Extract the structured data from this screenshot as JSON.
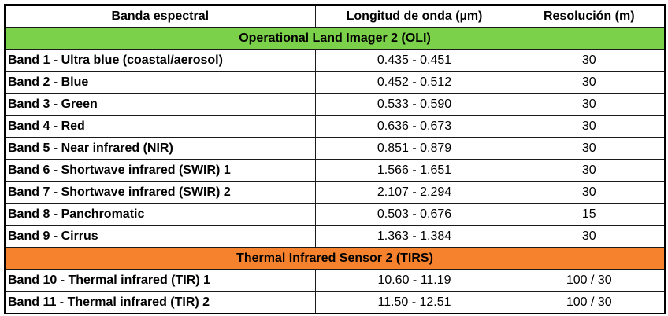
{
  "headers": {
    "band": "Banda espectral",
    "wavelength": "Longitud de onda (µm)",
    "resolution": "Resolución (m)"
  },
  "sections": [
    {
      "title": "Operational Land Imager 2 (OLI)",
      "color": "#7cd14a",
      "rows": [
        {
          "band": "Band 1 - Ultra blue (coastal/aerosol)",
          "wavelength": "0.435 - 0.451",
          "resolution": "30"
        },
        {
          "band": "Band 2 - Blue",
          "wavelength": "0.452 - 0.512",
          "resolution": "30"
        },
        {
          "band": "Band 3 - Green",
          "wavelength": "0.533 - 0.590",
          "resolution": "30"
        },
        {
          "band": "Band 4 - Red",
          "wavelength": "0.636 - 0.673",
          "resolution": "30"
        },
        {
          "band": "Band 5 - Near infrared (NIR)",
          "wavelength": "0.851 - 0.879",
          "resolution": "30"
        },
        {
          "band": "Band 6 - Shortwave infrared (SWIR) 1",
          "wavelength": "1.566 - 1.651",
          "resolution": "30"
        },
        {
          "band": "Band 7 - Shortwave infrared (SWIR) 2",
          "wavelength": "2.107 - 2.294",
          "resolution": "30"
        },
        {
          "band": "Band 8 - Panchromatic",
          "wavelength": "0.503 - 0.676",
          "resolution": "15"
        },
        {
          "band": "Band 9 - Cirrus",
          "wavelength": "1.363 - 1.384",
          "resolution": "30"
        }
      ]
    },
    {
      "title": "Thermal Infrared Sensor 2 (TIRS)",
      "color": "#f6822d",
      "rows": [
        {
          "band": "Band 10 - Thermal infrared (TIR) 1",
          "wavelength": "10.60 - 11.19",
          "resolution": "100 / 30"
        },
        {
          "band": "Band 11 - Thermal infrared (TIR) 2",
          "wavelength": "11.50 - 12.51",
          "resolution": "100 / 30"
        }
      ]
    }
  ]
}
